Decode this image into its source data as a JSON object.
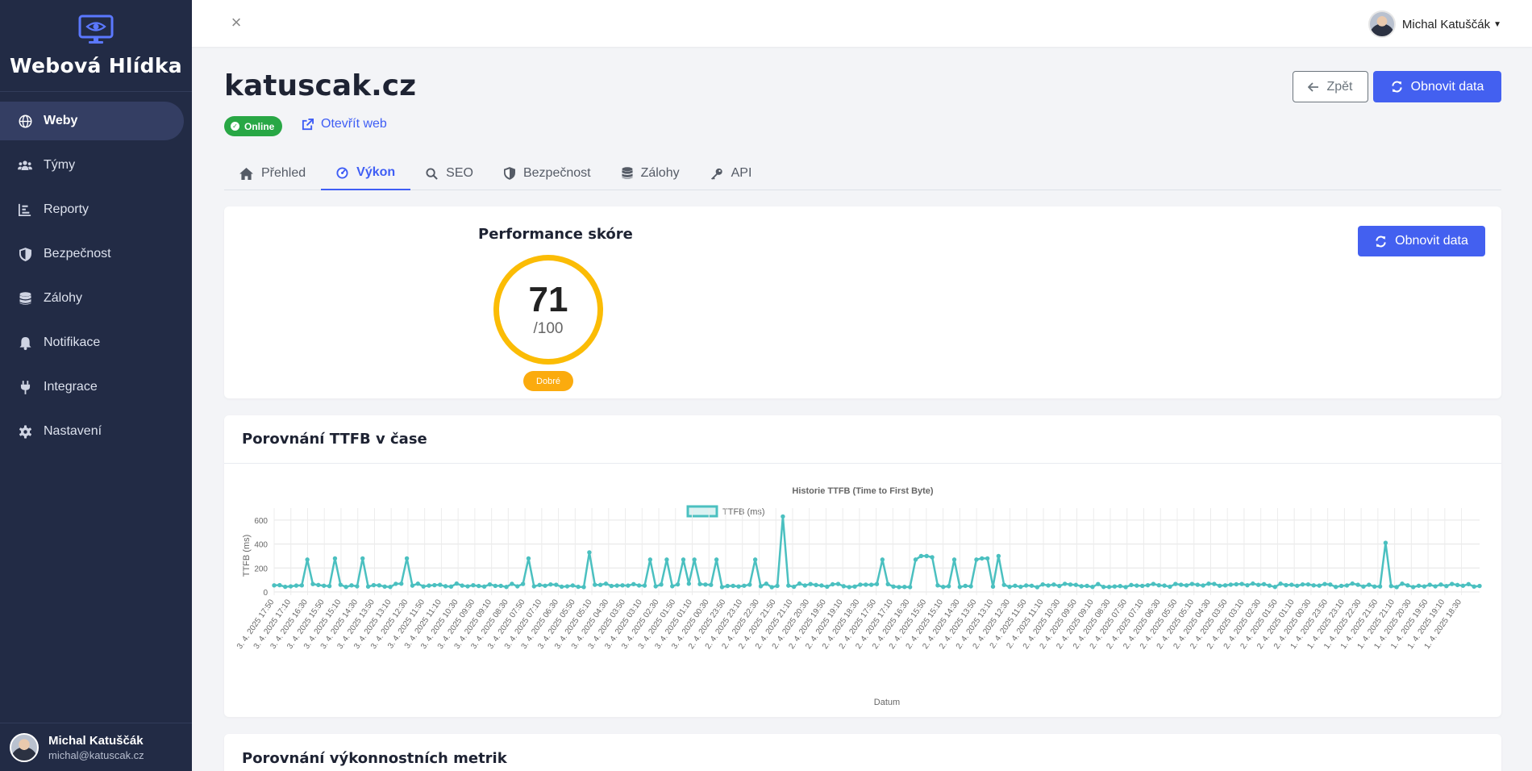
{
  "sidebar": {
    "brand": "Webová Hlídka",
    "items": [
      {
        "label": "Weby",
        "icon": "globe-icon"
      },
      {
        "label": "Týmy",
        "icon": "users-icon"
      },
      {
        "label": "Reporty",
        "icon": "chart-icon"
      },
      {
        "label": "Bezpečnost",
        "icon": "shield-icon"
      },
      {
        "label": "Zálohy",
        "icon": "database-icon"
      },
      {
        "label": "Notifikace",
        "icon": "bell-icon"
      },
      {
        "label": "Integrace",
        "icon": "plug-icon"
      },
      {
        "label": "Nastavení",
        "icon": "gear-icon"
      }
    ],
    "user": {
      "name": "Michal Katuščák",
      "email": "michal@katuscak.cz"
    }
  },
  "topbar": {
    "user_name": "Michal Katuščák"
  },
  "header": {
    "title": "katuscak.cz",
    "status": "Online",
    "open_link": "Otevřít web",
    "back_label": "Zpět",
    "refresh_label": "Obnovit data"
  },
  "tabs": [
    {
      "label": "Přehled",
      "icon": "home-icon"
    },
    {
      "label": "Výkon",
      "icon": "gauge-icon"
    },
    {
      "label": "SEO",
      "icon": "search-icon"
    },
    {
      "label": "Bezpečnost",
      "icon": "shield-icon"
    },
    {
      "label": "Zálohy",
      "icon": "database-icon"
    },
    {
      "label": "API",
      "icon": "key-icon"
    }
  ],
  "performance": {
    "title": "Performance skóre",
    "score": "71",
    "max": "/100",
    "label": "Dobré",
    "refresh_label": "Obnovit data"
  },
  "ttfb_card": {
    "title": "Porovnání TTFB v čase"
  },
  "metrics_card": {
    "title": "Porovnání výkonnostních metrik"
  },
  "colors": {
    "primary": "#4360f0",
    "success": "#28a745",
    "warning": "#fbbc05",
    "sidebar": "#222b45",
    "series": "#4bc0c0"
  },
  "chart_data": {
    "type": "line",
    "title": "Historie TTFB (Time to First Byte)",
    "xlabel": "Datum",
    "ylabel": "TTFB (ms)",
    "ylim": [
      0,
      700
    ],
    "yticks": [
      0,
      200,
      400,
      600
    ],
    "series": [
      {
        "name": "TTFB (ms)"
      }
    ],
    "x": [
      "3. 4. 2025 17:50",
      "3. 4. 2025 17:10",
      "3. 4. 2025 16:30",
      "3. 4. 2025 15:50",
      "3. 4. 2025 15:10",
      "3. 4. 2025 14:30",
      "3. 4. 2025 13:50",
      "3. 4. 2025 13:10",
      "3. 4. 2025 12:30",
      "3. 4. 2025 11:50",
      "3. 4. 2025 11:10",
      "3. 4. 2025 10:30",
      "3. 4. 2025 09:50",
      "3. 4. 2025 09:10",
      "3. 4. 2025 08:30",
      "3. 4. 2025 07:50",
      "3. 4. 2025 07:10",
      "3. 4. 2025 06:30",
      "3. 4. 2025 05:50",
      "3. 4. 2025 05:10",
      "3. 4. 2025 04:30",
      "3. 4. 2025 03:50",
      "3. 4. 2025 03:10",
      "3. 4. 2025 02:30",
      "3. 4. 2025 01:50",
      "3. 4. 2025 01:10",
      "3. 4. 2025 00:30",
      "2. 4. 2025 23:50",
      "2. 4. 2025 23:10",
      "2. 4. 2025 22:30",
      "2. 4. 2025 21:50",
      "2. 4. 2025 21:10",
      "2. 4. 2025 20:30",
      "2. 4. 2025 19:50",
      "2. 4. 2025 19:10",
      "2. 4. 2025 18:30",
      "2. 4. 2025 17:50",
      "2. 4. 2025 17:10",
      "2. 4. 2025 16:30",
      "2. 4. 2025 15:50",
      "2. 4. 2025 15:10",
      "2. 4. 2025 14:30",
      "2. 4. 2025 13:50",
      "2. 4. 2025 13:10",
      "2. 4. 2025 12:30",
      "2. 4. 2025 11:50",
      "2. 4. 2025 11:10",
      "2. 4. 2025 10:30",
      "2. 4. 2025 09:50",
      "2. 4. 2025 09:10",
      "2. 4. 2025 08:30",
      "2. 4. 2025 07:50",
      "2. 4. 2025 07:10",
      "2. 4. 2025 06:30",
      "2. 4. 2025 05:50",
      "2. 4. 2025 05:10",
      "2. 4. 2025 04:30",
      "2. 4. 2025 03:50",
      "2. 4. 2025 03:10",
      "2. 4. 2025 02:30",
      "2. 4. 2025 01:50",
      "2. 4. 2025 01:10",
      "2. 4. 2025 00:30",
      "1. 4. 2025 23:50",
      "1. 4. 2025 23:10",
      "1. 4. 2025 22:30",
      "1. 4. 2025 21:50",
      "1. 4. 2025 21:10",
      "1. 4. 2025 20:30",
      "1. 4. 2025 19:50",
      "1. 4. 2025 19:10",
      "1. 4. 2025 18:30"
    ],
    "points_count": 219,
    "baseline_ms": 55,
    "spikes": [
      {
        "index": 6,
        "value": 270
      },
      {
        "index": 11,
        "value": 280
      },
      {
        "index": 16,
        "value": 280
      },
      {
        "index": 24,
        "value": 280
      },
      {
        "index": 46,
        "value": 280
      },
      {
        "index": 57,
        "value": 330
      },
      {
        "index": 68,
        "value": 270
      },
      {
        "index": 71,
        "value": 270
      },
      {
        "index": 74,
        "value": 270
      },
      {
        "index": 76,
        "value": 270
      },
      {
        "index": 80,
        "value": 270
      },
      {
        "index": 87,
        "value": 270
      },
      {
        "index": 92,
        "value": 630
      },
      {
        "index": 110,
        "value": 270
      },
      {
        "index": 116,
        "value": 270
      },
      {
        "index": 117,
        "value": 300
      },
      {
        "index": 118,
        "value": 300
      },
      {
        "index": 119,
        "value": 290
      },
      {
        "index": 123,
        "value": 270
      },
      {
        "index": 127,
        "value": 270
      },
      {
        "index": 128,
        "value": 280
      },
      {
        "index": 129,
        "value": 280
      },
      {
        "index": 131,
        "value": 300
      },
      {
        "index": 201,
        "value": 410
      }
    ]
  }
}
